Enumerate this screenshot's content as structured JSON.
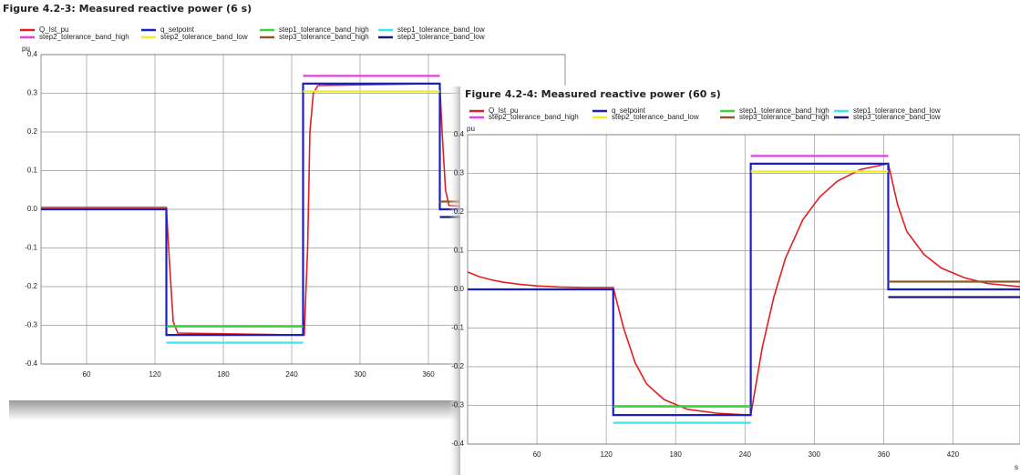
{
  "chart_data": [
    {
      "type": "line",
      "title": "Figure 4.2-3: Measured reactive power (6 s)",
      "ylabel": "pu",
      "xlim": [
        20,
        480
      ],
      "ylim": [
        -0.4,
        0.4
      ],
      "xticks": [
        60,
        120,
        180,
        240,
        300,
        360
      ],
      "yticks": [
        0.4,
        0.3,
        0.2,
        0.1,
        {
          "value": 0,
          "label": "0.0"
        },
        -0.1,
        -0.2,
        -0.3,
        -0.4
      ],
      "grid": true,
      "series": [
        {
          "name": "Q_Ist_pu",
          "color": "#e0201e",
          "x": [
            20,
            130,
            133,
            136,
            140,
            251,
            254,
            256,
            259,
            263,
            370,
            372,
            375,
            378,
            400,
            480
          ],
          "values": [
            0.005,
            0.005,
            -0.15,
            -0.29,
            -0.32,
            -0.325,
            -0.1,
            0.2,
            0.3,
            0.32,
            0.325,
            0.2,
            0.05,
            0.01,
            0.005,
            0.003
          ]
        },
        {
          "name": "q_setpoint",
          "color": "#1c1fc4",
          "x": [
            20,
            130,
            130,
            250,
            250,
            370,
            370,
            480
          ],
          "values": [
            0,
            0,
            -0.325,
            -0.325,
            0.325,
            0.325,
            0,
            0
          ]
        },
        {
          "name": "step1_tolerance_band_high",
          "color": "#3cd23c",
          "x": [
            130,
            250
          ],
          "values": [
            -0.303,
            -0.303
          ]
        },
        {
          "name": "step1_tolerance_band_low",
          "color": "#3ee6e6",
          "x": [
            130,
            250
          ],
          "values": [
            -0.345,
            -0.345
          ]
        },
        {
          "name": "step2_tolerance_band_high",
          "color": "#e040e0",
          "x": [
            250,
            370
          ],
          "values": [
            0.345,
            0.345
          ]
        },
        {
          "name": "step2_tolerance_band_low",
          "color": "#f0f020",
          "x": [
            250,
            370
          ],
          "values": [
            0.305,
            0.305
          ]
        },
        {
          "name": "step3_tolerance_band_high",
          "color": "#8b5a2b",
          "x": [
            370,
            480
          ],
          "values": [
            0.02,
            0.02
          ]
        },
        {
          "name": "step3_tolerance_band_low",
          "color": "#1a1a6e",
          "x": [
            370,
            480
          ],
          "values": [
            -0.02,
            -0.02
          ]
        }
      ]
    },
    {
      "type": "line",
      "title": "Figure 4.2-4: Measured reactive power (60 s)",
      "ylabel": "pu",
      "xlabel": "s",
      "xlim": [
        0,
        478
      ],
      "ylim": [
        -0.4,
        0.4
      ],
      "xticks": [
        60,
        120,
        180,
        240,
        300,
        360,
        420
      ],
      "yticks": [
        0.4,
        0.3,
        0.2,
        0.1,
        {
          "value": 0,
          "label": "0.0"
        },
        -0.1,
        -0.2,
        -0.3,
        -0.4
      ],
      "grid": true,
      "series": [
        {
          "name": "Q_Ist_pu",
          "color": "#e0201e",
          "x": [
            0,
            10,
            20,
            30,
            45,
            60,
            80,
            100,
            126,
            135,
            145,
            155,
            170,
            190,
            215,
            245,
            255,
            265,
            275,
            290,
            305,
            320,
            340,
            364,
            372,
            380,
            395,
            410,
            430,
            450,
            478
          ],
          "values": [
            0.045,
            0.033,
            0.025,
            0.019,
            0.013,
            0.009,
            0.006,
            0.005,
            0.005,
            -0.1,
            -0.19,
            -0.245,
            -0.285,
            -0.31,
            -0.32,
            -0.325,
            -0.15,
            -0.02,
            0.08,
            0.18,
            0.24,
            0.28,
            0.31,
            0.325,
            0.22,
            0.15,
            0.09,
            0.055,
            0.03,
            0.015,
            0.007
          ]
        },
        {
          "name": "q_setpoint",
          "color": "#1c1fc4",
          "x": [
            0,
            126,
            126,
            245,
            245,
            364,
            364,
            478
          ],
          "values": [
            0,
            0,
            -0.325,
            -0.325,
            0.325,
            0.325,
            0,
            0
          ]
        },
        {
          "name": "step1_tolerance_band_high",
          "color": "#3cd23c",
          "x": [
            126,
            245
          ],
          "values": [
            -0.303,
            -0.303
          ]
        },
        {
          "name": "step1_tolerance_band_low",
          "color": "#3ee6e6",
          "x": [
            126,
            245
          ],
          "values": [
            -0.345,
            -0.345
          ]
        },
        {
          "name": "step2_tolerance_band_high",
          "color": "#e040e0",
          "x": [
            245,
            364
          ],
          "values": [
            0.345,
            0.345
          ]
        },
        {
          "name": "step2_tolerance_band_low",
          "color": "#f0f020",
          "x": [
            245,
            364
          ],
          "values": [
            0.305,
            0.305
          ]
        },
        {
          "name": "step3_tolerance_band_high",
          "color": "#8b5a2b",
          "x": [
            364,
            478
          ],
          "values": [
            0.02,
            0.02
          ]
        },
        {
          "name": "step3_tolerance_band_low",
          "color": "#1a1a6e",
          "x": [
            364,
            478
          ],
          "values": [
            -0.02,
            -0.02
          ]
        }
      ]
    }
  ]
}
